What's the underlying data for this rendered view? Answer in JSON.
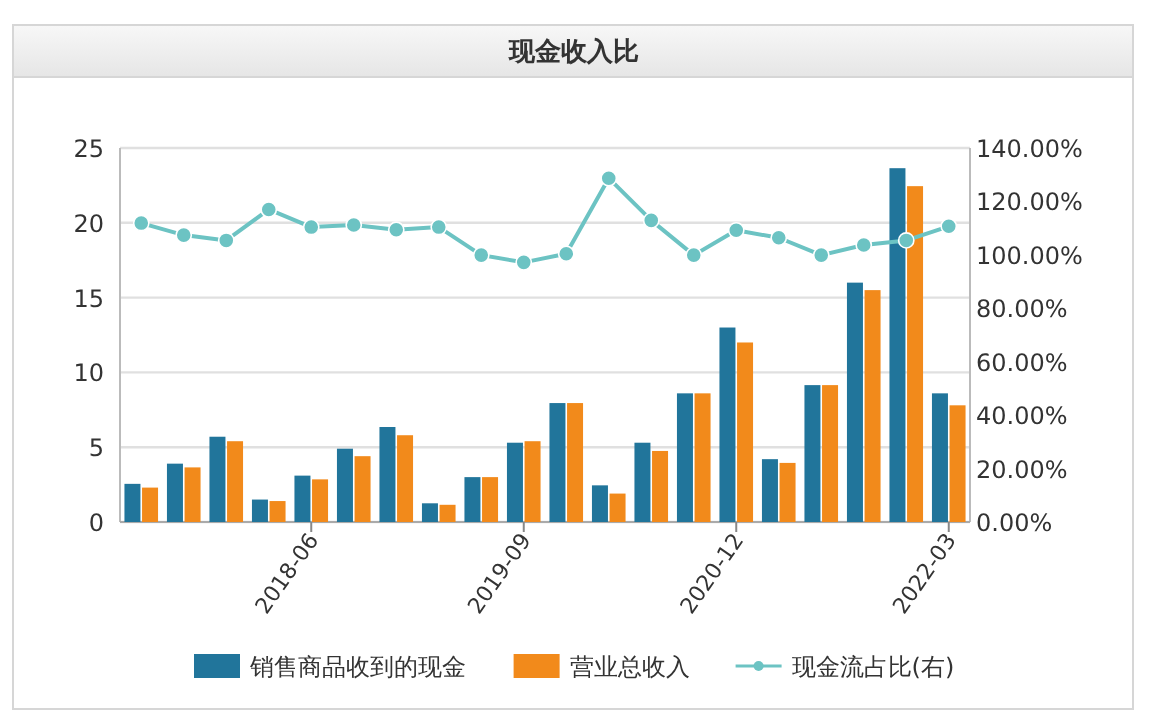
{
  "chart_data": {
    "type": "bar",
    "title": "现金收入比",
    "categories": [
      null,
      null,
      null,
      null,
      "2018-06",
      null,
      null,
      null,
      null,
      "2019-09",
      null,
      null,
      null,
      null,
      "2020-12",
      null,
      null,
      null,
      null,
      "2022-03"
    ],
    "series": [
      {
        "name": "销售商品收到的现金",
        "color": "#21759b",
        "values": [
          2.55,
          3.9,
          5.7,
          1.5,
          3.1,
          4.9,
          6.35,
          1.25,
          3.0,
          5.3,
          7.95,
          2.45,
          5.3,
          8.6,
          13.0,
          4.2,
          9.15,
          16.0,
          23.65,
          8.6
        ]
      },
      {
        "name": "营业总收入",
        "color": "#f28a1b",
        "values": [
          2.3,
          3.65,
          5.4,
          1.4,
          2.85,
          4.4,
          5.8,
          1.15,
          3.0,
          5.4,
          7.95,
          1.9,
          4.75,
          8.6,
          12.0,
          3.95,
          9.15,
          15.5,
          22.45,
          7.8
        ]
      },
      {
        "name": "现金流占比(右)",
        "color": "#6cc3c3",
        "type": "line",
        "axis": "y2",
        "marker": "circle",
        "values": [
          111.9,
          107.4,
          105.4,
          117.0,
          110.4,
          111.2,
          109.4,
          110.4,
          99.9,
          97.2,
          100.4,
          128.7,
          112.9,
          99.9,
          109.2,
          106.4,
          99.9,
          103.7,
          105.4,
          110.7
        ]
      }
    ],
    "ylim": [
      0,
      25
    ],
    "yticks": [
      0,
      5,
      10,
      15,
      20,
      25
    ],
    "y2lim": [
      0,
      140
    ],
    "y2ticks": [
      {
        "value": 0,
        "label": "0.00%"
      },
      {
        "value": 20,
        "label": "20.00%"
      },
      {
        "value": 40,
        "label": "40.00%"
      },
      {
        "value": 60,
        "label": "60.00%"
      },
      {
        "value": 80,
        "label": "80.00%"
      },
      {
        "value": 100,
        "label": "100.00%"
      },
      {
        "value": 120,
        "label": "120.00%"
      },
      {
        "value": 140,
        "label": "140.00%"
      }
    ],
    "grid": "y",
    "legend": "bottom"
  }
}
